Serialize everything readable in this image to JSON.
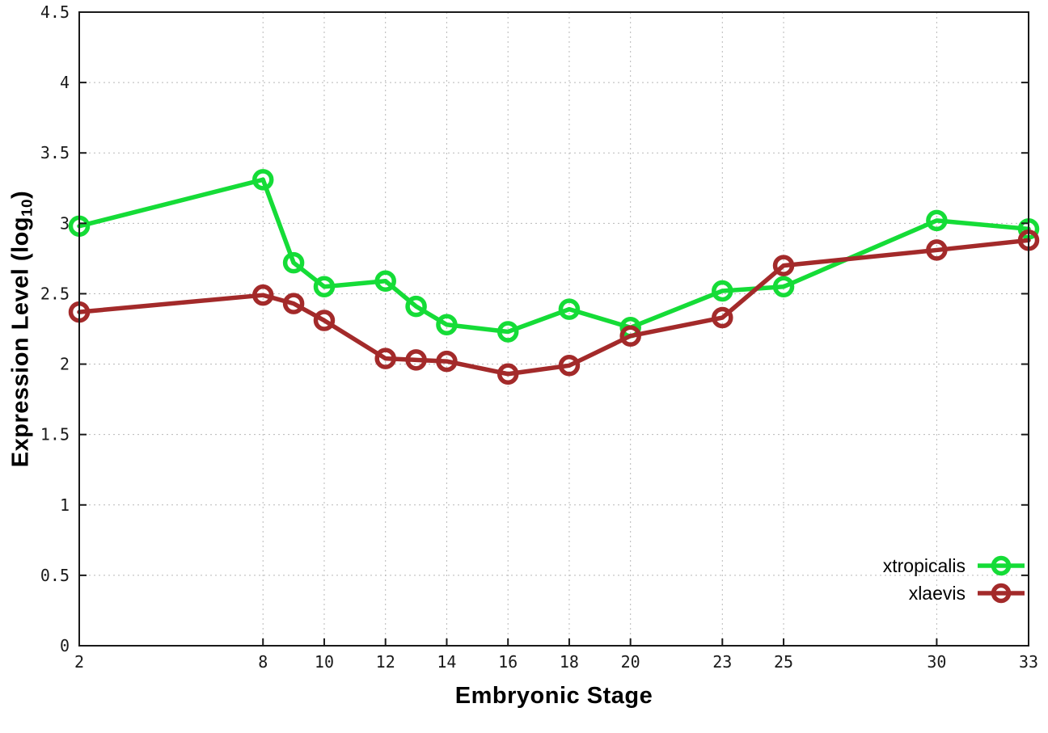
{
  "chart_data": {
    "type": "line",
    "x": [
      2,
      8,
      9,
      10,
      12,
      13,
      14,
      16,
      18,
      20,
      23,
      25,
      30,
      33
    ],
    "series": [
      {
        "name": "xtropicalis",
        "color": "#15dc37",
        "values": [
          2.98,
          3.31,
          2.72,
          2.55,
          2.59,
          2.41,
          2.28,
          2.23,
          2.39,
          2.26,
          2.52,
          2.55,
          3.02,
          2.96
        ]
      },
      {
        "name": "xlaevis",
        "color": "#a32a2a",
        "values": [
          2.37,
          2.49,
          2.43,
          2.31,
          2.04,
          2.03,
          2.02,
          1.93,
          1.99,
          2.2,
          2.33,
          2.7,
          2.81,
          2.88
        ]
      }
    ],
    "title": "",
    "xlabel": "Embryonic Stage",
    "ylabel_pre": "Expression Level (log",
    "ylabel_sub": "10",
    "ylabel_post": ")",
    "xlim": [
      2,
      33
    ],
    "ylim": [
      0,
      4.5
    ],
    "x_ticks": [
      2,
      8,
      10,
      12,
      14,
      16,
      18,
      20,
      23,
      25,
      30,
      33
    ],
    "y_ticks": [
      0,
      0.5,
      1,
      1.5,
      2,
      2.5,
      3,
      3.5,
      4,
      4.5
    ],
    "grid": true,
    "legend_position": "bottom-right",
    "marker": "open-circle",
    "axis_color": "#1a1a1a",
    "grid_color": "#b8b8b8"
  }
}
